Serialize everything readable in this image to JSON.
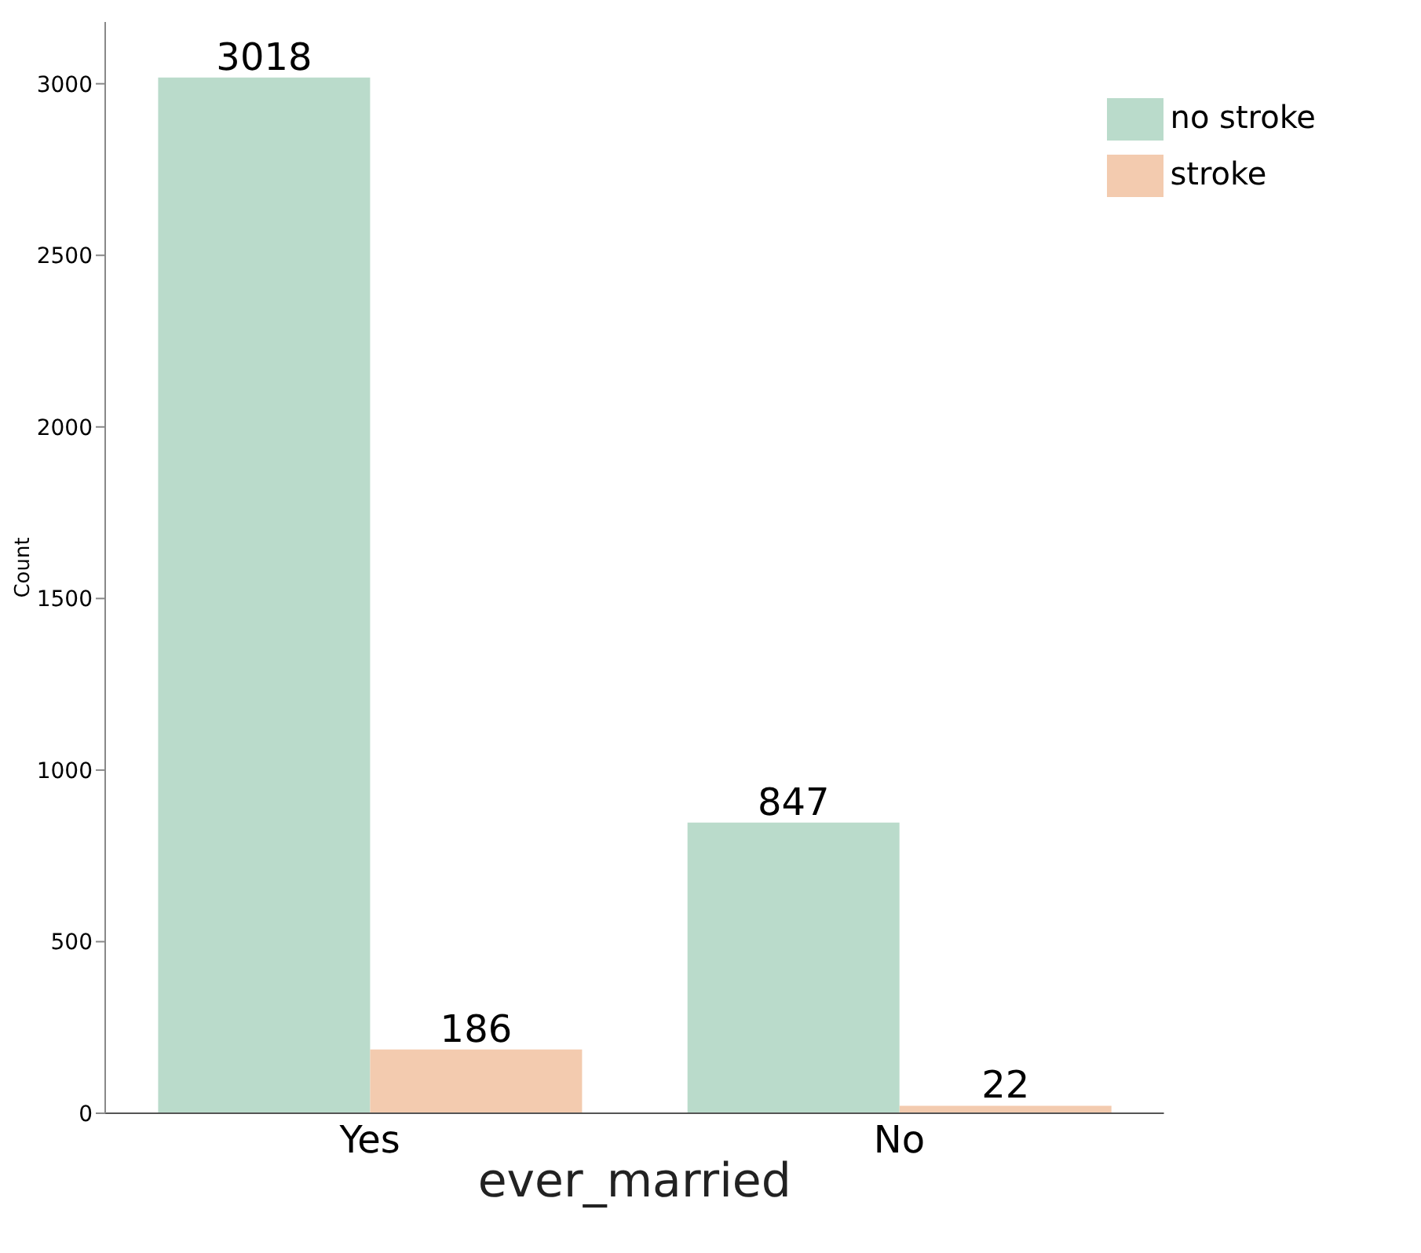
{
  "chart_data": {
    "type": "bar",
    "xlabel": "ever_married",
    "ylabel": "Count",
    "categories": [
      "Yes",
      "No"
    ],
    "series": [
      {
        "name": "no stroke",
        "color": "#badbcb",
        "values": [
          3018,
          847
        ]
      },
      {
        "name": "stroke",
        "color": "#f3cbaf",
        "values": [
          186,
          22
        ]
      }
    ],
    "ylim": [
      0,
      3180
    ],
    "yticks": [
      0,
      500,
      1000,
      1500,
      2000,
      2500,
      3000
    ],
    "grid": false,
    "legend": "top right",
    "data_labels": true
  }
}
